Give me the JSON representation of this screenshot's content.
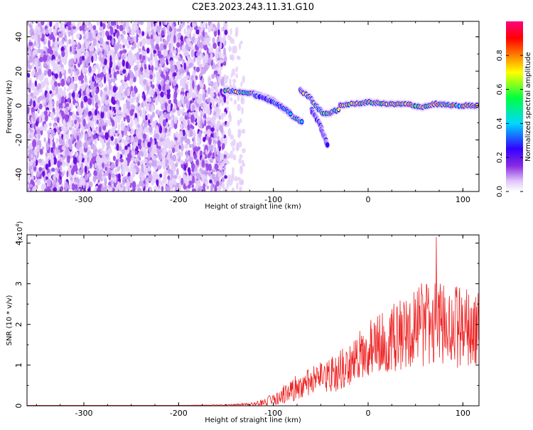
{
  "page": {
    "title": "C2E3.2023.243.11.31.G10"
  },
  "chart_data": [
    {
      "type": "heatmap",
      "xlabel": "Height of straight line (km)",
      "ylabel": "Frequency (Hz)",
      "xlim": [
        -360,
        117
      ],
      "ylim": [
        -50,
        49
      ],
      "x_ticks": [
        -300,
        -200,
        -100,
        0,
        100
      ],
      "y_ticks": [
        -40,
        -20,
        0,
        20,
        40
      ],
      "grid": false,
      "colorbar": {
        "label": "Normalized spectral amplitude",
        "range": [
          0,
          1
        ],
        "ticks": [
          0.0,
          0.2,
          0.4,
          0.6,
          0.8
        ],
        "stops": [
          "#ffffff",
          "#e0c8f8",
          "#8a2be2",
          "#3300ff",
          "#00d8ff",
          "#00ff40",
          "#ffff00",
          "#ff8000",
          "#ff0000",
          "#ff0080"
        ]
      },
      "regions": [
        {
          "x": [
            -360,
            -150
          ],
          "y": [
            -50,
            49
          ],
          "amplitude": 0.1
        },
        {
          "x": [
            -150,
            -130
          ],
          "y": [
            -50,
            49
          ],
          "amplitude": 0.03
        }
      ],
      "ridges": [
        {
          "x": [
            -152,
            -120,
            -100,
            -85,
            -75,
            -68
          ],
          "y": [
            9,
            7,
            3,
            -4,
            -8,
            -10
          ],
          "amplitude": 0.6
        },
        {
          "x": [
            -120,
            -100,
            -90,
            -80
          ],
          "y": [
            6,
            2,
            -1,
            -5
          ],
          "amplitude": 0.4
        },
        {
          "x": [
            -72,
            -62,
            -55,
            -48,
            -42,
            -30
          ],
          "y": [
            9,
            5,
            0,
            -4,
            -5,
            -2
          ],
          "amplitude": 0.7
        },
        {
          "x": [
            -60,
            -50,
            -43
          ],
          "y": [
            -2,
            -12,
            -24
          ],
          "amplitude": 0.3
        },
        {
          "x": [
            -30,
            0,
            20,
            40,
            55,
            70,
            90,
            117
          ],
          "y": [
            0,
            2,
            1,
            1,
            -1,
            1,
            0,
            0
          ],
          "amplitude": 0.85
        }
      ]
    },
    {
      "type": "line",
      "xlabel": "Height of straight line (km)",
      "ylabel": "SNR (10 * v/v)",
      "scale_label": "(x10",
      "scale_exp": "4",
      "scale_close": ")",
      "xlim": [
        -360,
        117
      ],
      "ylim": [
        0,
        4.2
      ],
      "x_ticks": [
        -300,
        -200,
        -100,
        0,
        100
      ],
      "y_ticks": [
        0,
        1,
        2,
        3,
        4
      ],
      "grid": false,
      "series": [
        {
          "color": "#ee2222",
          "x": [
            -360,
            -300,
            -250,
            -200,
            -150,
            -120,
            -100,
            -80,
            -60,
            -40,
            -20,
            0,
            20,
            40,
            60,
            80,
            100,
            117
          ],
          "y": [
            0.01,
            0.01,
            0.01,
            0.01,
            0.02,
            0.05,
            0.15,
            0.4,
            0.6,
            0.75,
            1.0,
            1.4,
            1.6,
            1.8,
            2.0,
            2.0,
            1.9,
            1.85
          ],
          "noise": [
            0,
            0,
            0,
            0,
            0.01,
            0.04,
            0.15,
            0.3,
            0.35,
            0.45,
            0.55,
            0.7,
            0.8,
            0.9,
            1.1,
            1.0,
            1.0,
            1.0
          ]
        }
      ]
    }
  ]
}
